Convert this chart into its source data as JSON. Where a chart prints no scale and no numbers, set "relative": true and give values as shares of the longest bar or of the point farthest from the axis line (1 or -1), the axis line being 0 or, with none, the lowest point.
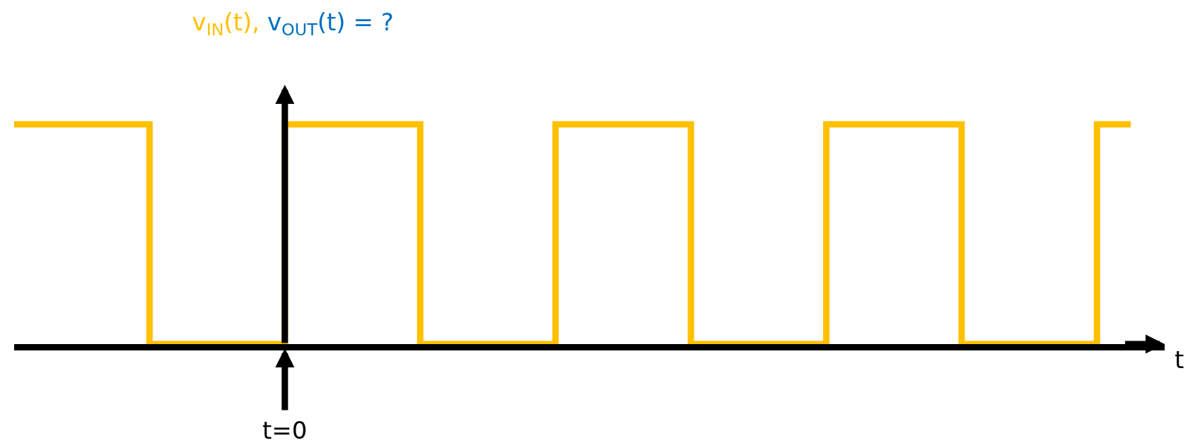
{
  "chart_data": {
    "type": "step",
    "title": "v$_{IN}$(t), v$_{OUT}$(t) = ?",
    "xlabel": "t",
    "relative": true,
    "categories": [
      null,
      null,
      null,
      null,
      null,
      null,
      null,
      null,
      null,
      null,
      null,
      null,
      null,
      null,
      null,
      null,
      null,
      null,
      null,
      null,
      null,
      null,
      null,
      null,
      null,
      null,
      null,
      null,
      null,
      null,
      null,
      null,
      null,
      null
    ],
    "series": [
      {
        "color": "#ffc000",
        "values": [
          1,
          1,
          1,
          1,
          0,
          0,
          0,
          0,
          1,
          1,
          1,
          1,
          0,
          0,
          0,
          0,
          1,
          1,
          1,
          1,
          0,
          0,
          0,
          0,
          1,
          1,
          1,
          1,
          0,
          0,
          0,
          0,
          1,
          1
        ]
      }
    ],
    "annotations": [
      "t=0"
    ],
    "marker": "none",
    "line_style": "solid"
  }
}
